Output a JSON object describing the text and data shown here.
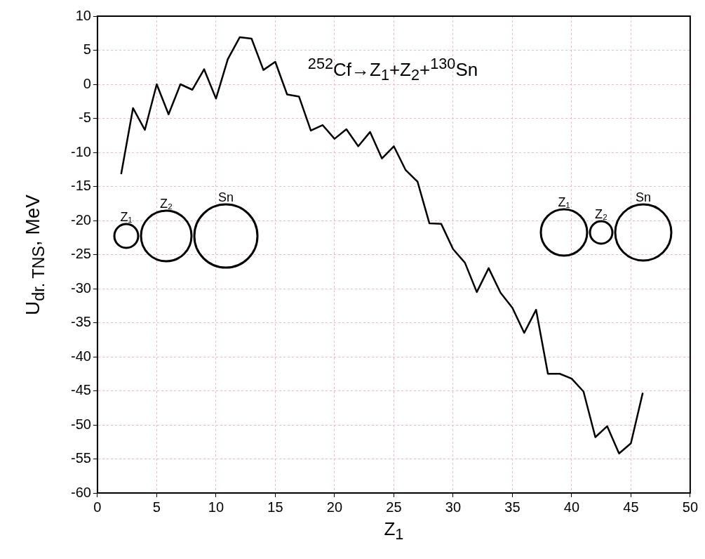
{
  "chart_data": {
    "type": "line",
    "xlabel": "Z$_{1}$",
    "ylabel": "U$_{dr. TNS}$, MeV",
    "annotations": [
      "$^{252}$Cf→Z$_{1}$+Z$_{2}$+$^{130}$Sn",
      "Z₁",
      "Z₂",
      "Sn"
    ],
    "x": [
      2,
      3,
      4,
      5,
      6,
      7,
      8,
      9,
      10,
      11,
      12,
      13,
      14,
      15,
      16,
      17,
      18,
      19,
      20,
      21,
      22,
      23,
      24,
      25,
      26,
      27,
      28,
      29,
      30,
      31,
      32,
      33,
      34,
      35,
      36,
      37,
      38,
      39,
      40,
      41,
      42,
      43,
      44,
      45,
      46
    ],
    "series": [
      {
        "color": "#000000",
        "values": [
          -13.2,
          -3.5,
          -6.7,
          0.0,
          -4.4,
          0.0,
          -0.8,
          2.2,
          -2.1,
          3.7,
          6.9,
          6.7,
          2.1,
          3.3,
          -1.5,
          -1.8,
          -6.8,
          -6.0,
          -8.0,
          -6.6,
          -9.1,
          -7.0,
          -10.9,
          -9.1,
          -12.6,
          -14.3,
          -20.4,
          -20.5,
          -24.2,
          -26.2,
          -30.5,
          -27.0,
          -30.6,
          -32.8,
          -36.5,
          -33.1,
          -42.5,
          -42.5,
          -43.2,
          -45.1,
          -51.8,
          -50.2,
          -54.2,
          -52.7,
          -45.3
        ]
      }
    ],
    "xlim": [
      0,
      50
    ],
    "xticks": [
      0,
      5,
      10,
      15,
      20,
      25,
      30,
      35,
      40,
      45,
      50
    ],
    "ylim": [
      -60,
      10
    ],
    "yticks": [
      -60,
      -55,
      -50,
      -45,
      -40,
      -35,
      -30,
      -25,
      -20,
      -15,
      -10,
      -5,
      0,
      5,
      10
    ],
    "grid": true,
    "legend": false,
    "marker": "none",
    "line_style": "solid"
  }
}
